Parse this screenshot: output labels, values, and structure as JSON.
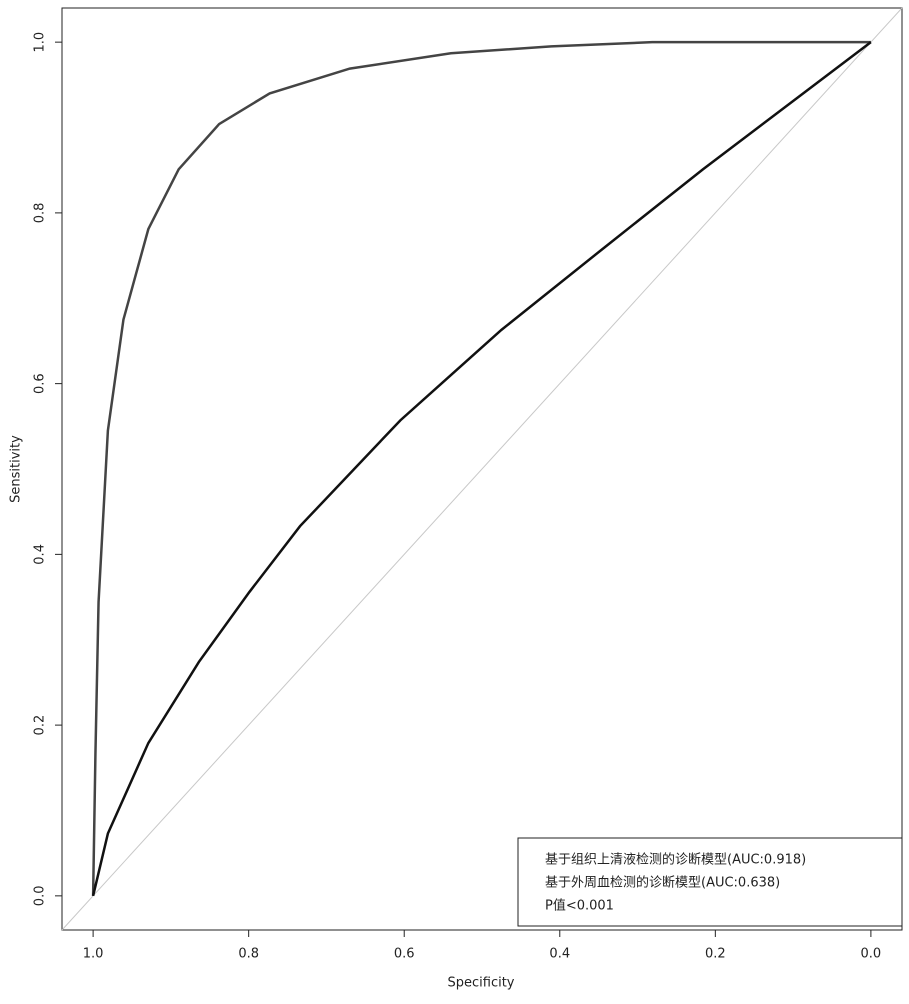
{
  "chart_data": {
    "type": "line",
    "x_label": "Specificity",
    "y_label": "Sensitivity",
    "xlim": [
      1.04,
      -0.04
    ],
    "ylim": [
      -0.04,
      1.04
    ],
    "xticks": [
      {
        "value": 1,
        "label": "1.0"
      },
      {
        "value": 0.8,
        "label": "0.8"
      },
      {
        "value": 0.6,
        "label": "0.6"
      },
      {
        "value": 0.4,
        "label": "0.4"
      },
      {
        "value": 0.2,
        "label": "0.2"
      },
      {
        "value": 0,
        "label": "0.0"
      }
    ],
    "yticks": [
      {
        "value": 0,
        "label": "0.0"
      },
      {
        "value": 0.2,
        "label": "0.2"
      },
      {
        "value": 0.4,
        "label": "0.4"
      },
      {
        "value": 0.6,
        "label": "0.6"
      },
      {
        "value": 0.8,
        "label": "0.8"
      },
      {
        "value": 1,
        "label": "1.0"
      }
    ],
    "series": [
      {
        "name": "基于组织上清液检测的诊断模型(AUC:0.918)",
        "color": "#444444",
        "x": [
          1,
          0.997,
          0.993,
          0.981,
          0.961,
          0.929,
          0.89,
          0.838,
          0.773,
          0.67,
          0.54,
          0.411,
          0.281,
          0
        ],
        "values": [
          0,
          0.167,
          0.344,
          0.545,
          0.675,
          0.781,
          0.851,
          0.904,
          0.94,
          0.969,
          0.987,
          0.995,
          1,
          1
        ]
      },
      {
        "name": "基于外周血检测的诊断模型(AUC:0.638)",
        "color": "#111111",
        "x": [
          1,
          0.981,
          0.929,
          0.864,
          0.799,
          0.734,
          0.605,
          0.475,
          0.346,
          0.216,
          0.087,
          0
        ],
        "values": [
          0,
          0.073,
          0.179,
          0.274,
          0.356,
          0.433,
          0.557,
          0.663,
          0.757,
          0.851,
          0.94,
          1
        ]
      }
    ],
    "annotation": "P值<0.001"
  }
}
